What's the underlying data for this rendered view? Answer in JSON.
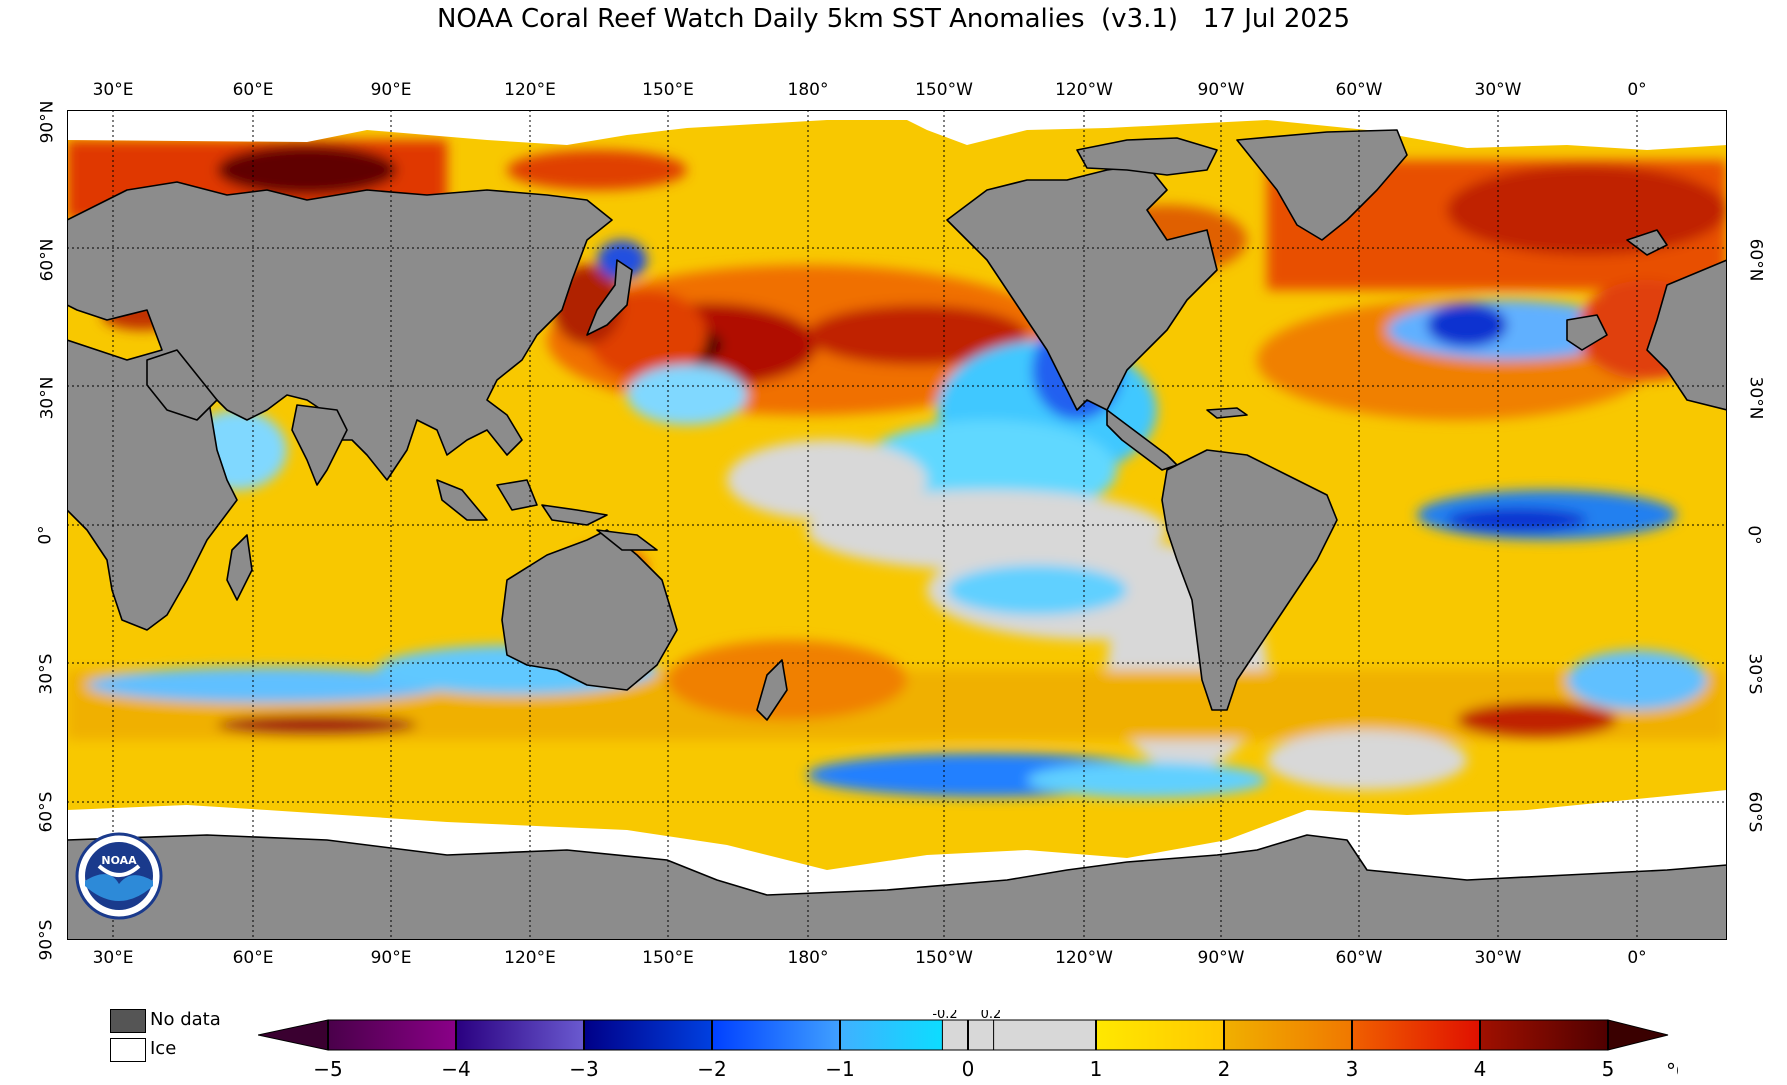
{
  "title": "NOAA Coral Reef Watch Daily 5km SST Anomalies  (v3.1)   17 Jul 2025",
  "longitude_labels": [
    "30°E",
    "60°E",
    "90°E",
    "120°E",
    "150°E",
    "180°",
    "150°W",
    "120°W",
    "90°W",
    "60°W",
    "30°W",
    "0°"
  ],
  "latitude_labels_left": [
    "90°N",
    "60°N",
    "30°N",
    "0°",
    "30°S",
    "60°S",
    "90°S"
  ],
  "latitude_labels_right": [
    "60°N",
    "30°N",
    "0°",
    "30°S",
    "60°S"
  ],
  "legend": {
    "no_data_label": "No data",
    "ice_label": "Ice",
    "no_data_color": "#555555",
    "ice_color": "#ffffff"
  },
  "colorbar": {
    "tick_labels": [
      "−5",
      "−4",
      "−3",
      "−2",
      "−1",
      "0",
      "1",
      "2",
      "3",
      "4",
      "5"
    ],
    "minor_labels": [
      "-0.2",
      "0.2"
    ],
    "unit": "°C",
    "colors": {
      "strong_negative": "#3a0030",
      "purple": "#8a0088",
      "indigo": "#4a2aa8",
      "blue_dark": "#0018b0",
      "blue": "#0060ff",
      "light_blue": "#00d8ff",
      "neutral": "#d8d8d8",
      "yellow": "#ffe800",
      "orange": "#f59a00",
      "red": "#f03000",
      "dark_red": "#800000",
      "strong_positive": "#3a0000"
    }
  },
  "map_colors": {
    "land": "#8c8c8c",
    "ice": "#ffffff",
    "ocean_base": "#f8c800"
  },
  "logo_text": "NOAA"
}
